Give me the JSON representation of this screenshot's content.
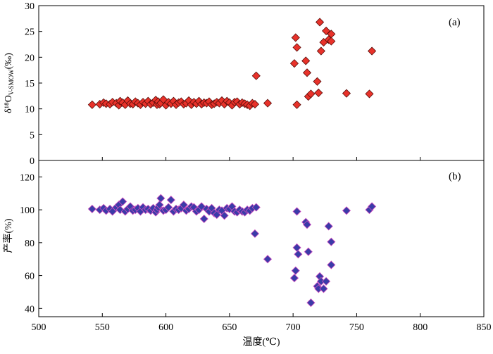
{
  "chart_data": [
    {
      "panel_label": "(a)",
      "type": "scatter",
      "ylabel": "δ¹⁸O",
      "ylabel_subscript": "V-SMOW",
      "ylabel_unit": "(‰)",
      "xlim": [
        500,
        850
      ],
      "ylim": [
        0,
        30
      ],
      "yticks": [
        0,
        5,
        10,
        15,
        20,
        25,
        30
      ],
      "marker": "diamond",
      "marker_color": "#e8322a",
      "marker_edge": "#5a0d0a",
      "grid": false,
      "series": [
        {
          "x": [
            542,
            548,
            551,
            553,
            556,
            558,
            561,
            563,
            564,
            566,
            568,
            570,
            572,
            574,
            576,
            578,
            580,
            582,
            584,
            586,
            588,
            590,
            592,
            593,
            594,
            595,
            596,
            598,
            600,
            602,
            604,
            606,
            608,
            610,
            612,
            614,
            616,
            618,
            620,
            622,
            624,
            626,
            628,
            630,
            632,
            634,
            636,
            638,
            640,
            642,
            644,
            646,
            648,
            650,
            652,
            654,
            656,
            658,
            660,
            662,
            664,
            666,
            668,
            670,
            671,
            680,
            701,
            702,
            703,
            703,
            710,
            711,
            712,
            714,
            719,
            720,
            721,
            722,
            724,
            726,
            728,
            730,
            730,
            742,
            760,
            762
          ],
          "y": [
            10.8,
            10.9,
            11.2,
            11.0,
            10.9,
            11.3,
            11.1,
            10.7,
            11.5,
            11.2,
            10.8,
            11.6,
            11.0,
            10.9,
            11.4,
            11.1,
            10.8,
            11.3,
            11.0,
            11.5,
            10.9,
            11.2,
            11.7,
            10.8,
            11.4,
            10.9,
            11.1,
            11.8,
            10.7,
            11.3,
            11.0,
            11.5,
            10.8,
            11.2,
            11.4,
            10.9,
            11.1,
            11.6,
            10.8,
            11.3,
            11.0,
            11.5,
            10.9,
            11.2,
            11.1,
            11.4,
            10.8,
            11.0,
            11.3,
            11.1,
            11.6,
            10.9,
            11.5,
            11.2,
            10.7,
            11.3,
            11.4,
            10.9,
            11.2,
            11.0,
            10.8,
            10.6,
            11.1,
            10.9,
            16.4,
            11.1,
            18.8,
            23.8,
            21.9,
            10.8,
            19.3,
            17.0,
            12.4,
            12.9,
            15.3,
            13.1,
            26.8,
            21.2,
            22.9,
            25.1,
            23.4,
            24.5,
            23.1,
            13.0,
            12.9,
            21.2
          ]
        }
      ]
    },
    {
      "panel_label": "(b)",
      "type": "scatter",
      "ylabel": "产率(%)",
      "xlabel": "温度(℃)",
      "xlim": [
        500,
        850
      ],
      "xticks": [
        500,
        550,
        600,
        650,
        700,
        750,
        800,
        850
      ],
      "ylim": [
        35,
        130
      ],
      "yticks": [
        40,
        60,
        80,
        100,
        120
      ],
      "marker": "diamond",
      "marker_color": "#3b3ba8",
      "marker_edge": "#cf4fbf",
      "grid": false,
      "series": [
        {
          "x": [
            542,
            548,
            551,
            553,
            556,
            558,
            561,
            563,
            564,
            566,
            568,
            570,
            572,
            574,
            576,
            578,
            580,
            582,
            584,
            586,
            588,
            590,
            592,
            593,
            594,
            595,
            596,
            598,
            600,
            602,
            604,
            606,
            608,
            610,
            612,
            614,
            616,
            618,
            620,
            622,
            624,
            626,
            628,
            630,
            632,
            634,
            636,
            638,
            640,
            642,
            644,
            646,
            648,
            650,
            652,
            654,
            656,
            658,
            660,
            662,
            664,
            666,
            668,
            670,
            671,
            680,
            701,
            702,
            703,
            703,
            704,
            710,
            711,
            712,
            714,
            719,
            720,
            721,
            722,
            724,
            726,
            728,
            730,
            730,
            742,
            760,
            762
          ],
          "y": [
            100.5,
            100.0,
            101.0,
            99.5,
            100.5,
            99.0,
            101.5,
            103.0,
            100.0,
            105.0,
            99.0,
            100.5,
            102.0,
            99.5,
            100.0,
            101.0,
            99.0,
            101.5,
            100.0,
            100.5,
            99.5,
            101.0,
            98.5,
            100.0,
            101.5,
            103.0,
            107.0,
            99.5,
            100.0,
            101.5,
            106.0,
            99.0,
            100.5,
            100.0,
            101.0,
            103.0,
            99.5,
            100.5,
            102.0,
            101.5,
            99.0,
            100.0,
            102.0,
            94.5,
            100.5,
            99.0,
            101.0,
            98.0,
            97.0,
            100.0,
            99.5,
            96.5,
            101.0,
            100.5,
            102.0,
            99.0,
            98.5,
            100.0,
            99.0,
            98.5,
            100.0,
            99.5,
            101.0,
            85.5,
            101.5,
            70.0,
            58.5,
            63.0,
            99.0,
            77.0,
            73.0,
            92.5,
            91.0,
            74.5,
            43.5,
            53.5,
            52.0,
            59.5,
            56.5,
            52.0,
            56.5,
            90.0,
            80.5,
            66.5,
            99.5,
            100.0,
            102.0
          ]
        }
      ]
    }
  ]
}
